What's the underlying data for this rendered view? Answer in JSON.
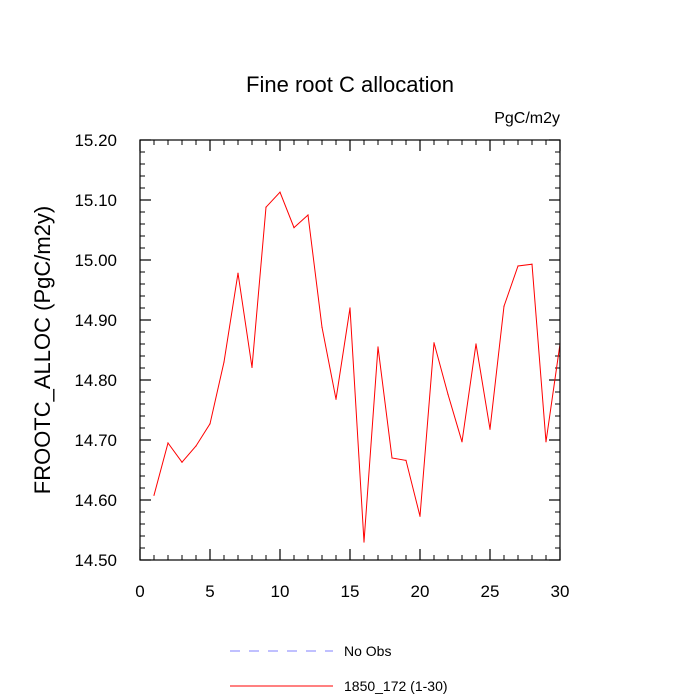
{
  "chart_data": {
    "type": "line",
    "title": "Fine root C allocation",
    "units_label": "PgC/m2y",
    "xlabel": "",
    "ylabel": "FROOTC_ALLOC  (PgC/m2y)",
    "xlim": [
      0,
      30
    ],
    "ylim": [
      14.5,
      15.2
    ],
    "x_ticks": [
      0,
      5,
      10,
      15,
      20,
      25,
      30
    ],
    "y_ticks": [
      14.5,
      14.6,
      14.7,
      14.8,
      14.9,
      15.0,
      15.1,
      15.2
    ],
    "y_tick_labels": [
      "14.50",
      "14.60",
      "14.70",
      "14.80",
      "14.90",
      "15.00",
      "15.10",
      "15.20"
    ],
    "series": [
      {
        "name": "1850_172 (1-30)",
        "color": "#ff0000",
        "style": "solid",
        "x": [
          1,
          2,
          3,
          4,
          5,
          6,
          7,
          8,
          9,
          10,
          11,
          12,
          13,
          14,
          15,
          16,
          17,
          18,
          19,
          20,
          21,
          22,
          23,
          24,
          25,
          26,
          27,
          28,
          29,
          30
        ],
        "values": [
          14.608,
          14.695,
          14.663,
          14.69,
          14.727,
          14.83,
          14.978,
          14.821,
          15.088,
          15.113,
          15.054,
          15.075,
          14.888,
          14.768,
          14.92,
          14.53,
          14.855,
          14.67,
          14.666,
          14.573,
          14.862,
          14.776,
          14.697,
          14.86,
          14.718,
          14.923,
          14.99,
          14.993,
          14.697,
          14.86
        ]
      }
    ],
    "legend": [
      {
        "label": "No Obs",
        "color": "#8080ff",
        "style": "dashed"
      },
      {
        "label": "1850_172 (1-30)",
        "color": "#ff0000",
        "style": "solid"
      }
    ]
  }
}
